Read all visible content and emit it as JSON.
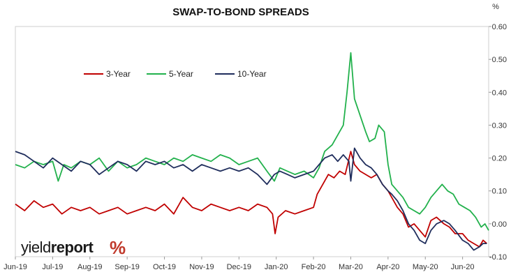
{
  "colors": {
    "three_year": "#c00000",
    "five_year": "#22b14c",
    "ten_year": "#1f2d5c",
    "axis": "#999999",
    "logo_accent": "#c0392b"
  },
  "logo": {
    "light": "yield",
    "bold": "report",
    "symbol": "%"
  },
  "chart_data": {
    "type": "line",
    "title": "SWAP-TO-BOND SPREADS",
    "ylabel": "%",
    "ylim": [
      -0.1,
      0.6
    ],
    "yticks": [
      "0.60",
      "0.50",
      "0.40",
      "0.30",
      "0.20",
      "0.10",
      "0.00",
      "-0.10"
    ],
    "ytick_values": [
      0.6,
      0.5,
      0.4,
      0.3,
      0.2,
      0.1,
      0.0,
      -0.1
    ],
    "xlim": [
      0,
      12.7
    ],
    "xticks": [
      "Jun-19",
      "Jul-19",
      "Aug-19",
      "Sep-19",
      "Oct-19",
      "Nov-19",
      "Dec-19",
      "Jan-20",
      "Feb-20",
      "Mar-20",
      "Apr-20",
      "May-20",
      "Jun-20"
    ],
    "xtick_values": [
      0,
      1,
      2,
      3,
      4,
      5,
      6,
      7,
      8,
      9,
      10,
      11,
      12
    ],
    "x_unit": "months since Jun-2019",
    "grid": false,
    "legend": {
      "position": "top-left",
      "entries": [
        "3-Year",
        "5-Year",
        "10-Year"
      ]
    },
    "series": [
      {
        "name": "3-Year",
        "color": "#c00000",
        "points": [
          [
            0.0,
            0.06
          ],
          [
            0.25,
            0.04
          ],
          [
            0.5,
            0.07
          ],
          [
            0.75,
            0.05
          ],
          [
            1.0,
            0.06
          ],
          [
            1.25,
            0.03
          ],
          [
            1.5,
            0.05
          ],
          [
            1.75,
            0.04
          ],
          [
            2.0,
            0.05
          ],
          [
            2.25,
            0.03
          ],
          [
            2.5,
            0.04
          ],
          [
            2.75,
            0.05
          ],
          [
            3.0,
            0.03
          ],
          [
            3.25,
            0.04
          ],
          [
            3.5,
            0.05
          ],
          [
            3.75,
            0.04
          ],
          [
            4.0,
            0.06
          ],
          [
            4.25,
            0.03
          ],
          [
            4.5,
            0.08
          ],
          [
            4.75,
            0.05
          ],
          [
            5.0,
            0.04
          ],
          [
            5.25,
            0.06
          ],
          [
            5.5,
            0.05
          ],
          [
            5.75,
            0.04
          ],
          [
            6.0,
            0.05
          ],
          [
            6.25,
            0.04
          ],
          [
            6.5,
            0.06
          ],
          [
            6.75,
            0.05
          ],
          [
            6.9,
            0.03
          ],
          [
            6.97,
            -0.03
          ],
          [
            7.05,
            0.02
          ],
          [
            7.25,
            0.04
          ],
          [
            7.5,
            0.03
          ],
          [
            7.75,
            0.04
          ],
          [
            8.0,
            0.05
          ],
          [
            8.1,
            0.09
          ],
          [
            8.25,
            0.12
          ],
          [
            8.4,
            0.15
          ],
          [
            8.55,
            0.14
          ],
          [
            8.7,
            0.16
          ],
          [
            8.85,
            0.15
          ],
          [
            9.0,
            0.22
          ],
          [
            9.1,
            0.18
          ],
          [
            9.25,
            0.16
          ],
          [
            9.4,
            0.15
          ],
          [
            9.55,
            0.14
          ],
          [
            9.7,
            0.15
          ],
          [
            9.85,
            0.12
          ],
          [
            10.0,
            0.1
          ],
          [
            10.1,
            0.08
          ],
          [
            10.25,
            0.05
          ],
          [
            10.4,
            0.03
          ],
          [
            10.55,
            -0.01
          ],
          [
            10.7,
            0.0
          ],
          [
            10.85,
            -0.02
          ],
          [
            11.0,
            -0.04
          ],
          [
            11.15,
            0.01
          ],
          [
            11.3,
            0.02
          ],
          [
            11.5,
            0.0
          ],
          [
            11.65,
            -0.01
          ],
          [
            11.8,
            -0.03
          ],
          [
            12.0,
            -0.03
          ],
          [
            12.15,
            -0.05
          ],
          [
            12.3,
            -0.06
          ],
          [
            12.45,
            -0.07
          ],
          [
            12.55,
            -0.05
          ],
          [
            12.65,
            -0.06
          ]
        ]
      },
      {
        "name": "5-Year",
        "color": "#22b14c",
        "points": [
          [
            0.0,
            0.18
          ],
          [
            0.25,
            0.17
          ],
          [
            0.5,
            0.19
          ],
          [
            0.75,
            0.18
          ],
          [
            1.0,
            0.19
          ],
          [
            1.15,
            0.13
          ],
          [
            1.3,
            0.18
          ],
          [
            1.5,
            0.17
          ],
          [
            1.75,
            0.19
          ],
          [
            2.0,
            0.18
          ],
          [
            2.25,
            0.2
          ],
          [
            2.5,
            0.16
          ],
          [
            2.75,
            0.19
          ],
          [
            3.0,
            0.17
          ],
          [
            3.25,
            0.18
          ],
          [
            3.5,
            0.2
          ],
          [
            3.75,
            0.19
          ],
          [
            4.0,
            0.18
          ],
          [
            4.25,
            0.2
          ],
          [
            4.5,
            0.19
          ],
          [
            4.75,
            0.21
          ],
          [
            5.0,
            0.2
          ],
          [
            5.25,
            0.19
          ],
          [
            5.5,
            0.21
          ],
          [
            5.75,
            0.2
          ],
          [
            6.0,
            0.18
          ],
          [
            6.25,
            0.19
          ],
          [
            6.5,
            0.2
          ],
          [
            6.75,
            0.16
          ],
          [
            6.95,
            0.13
          ],
          [
            7.1,
            0.17
          ],
          [
            7.3,
            0.16
          ],
          [
            7.5,
            0.15
          ],
          [
            7.75,
            0.16
          ],
          [
            8.0,
            0.14
          ],
          [
            8.15,
            0.17
          ],
          [
            8.3,
            0.22
          ],
          [
            8.5,
            0.24
          ],
          [
            8.65,
            0.27
          ],
          [
            8.8,
            0.3
          ],
          [
            8.9,
            0.4
          ],
          [
            9.0,
            0.52
          ],
          [
            9.1,
            0.38
          ],
          [
            9.25,
            0.33
          ],
          [
            9.4,
            0.28
          ],
          [
            9.5,
            0.25
          ],
          [
            9.65,
            0.26
          ],
          [
            9.75,
            0.3
          ],
          [
            9.9,
            0.28
          ],
          [
            10.0,
            0.18
          ],
          [
            10.1,
            0.12
          ],
          [
            10.25,
            0.1
          ],
          [
            10.4,
            0.08
          ],
          [
            10.55,
            0.05
          ],
          [
            10.7,
            0.04
          ],
          [
            10.85,
            0.03
          ],
          [
            11.0,
            0.05
          ],
          [
            11.15,
            0.08
          ],
          [
            11.3,
            0.1
          ],
          [
            11.45,
            0.12
          ],
          [
            11.6,
            0.1
          ],
          [
            11.75,
            0.09
          ],
          [
            11.9,
            0.06
          ],
          [
            12.05,
            0.05
          ],
          [
            12.2,
            0.04
          ],
          [
            12.35,
            0.02
          ],
          [
            12.5,
            -0.01
          ],
          [
            12.6,
            0.0
          ],
          [
            12.7,
            -0.02
          ]
        ]
      },
      {
        "name": "10-Year",
        "color": "#1f2d5c",
        "points": [
          [
            0.0,
            0.22
          ],
          [
            0.25,
            0.21
          ],
          [
            0.5,
            0.19
          ],
          [
            0.75,
            0.17
          ],
          [
            1.0,
            0.2
          ],
          [
            1.25,
            0.18
          ],
          [
            1.5,
            0.16
          ],
          [
            1.75,
            0.19
          ],
          [
            2.0,
            0.18
          ],
          [
            2.25,
            0.15
          ],
          [
            2.5,
            0.17
          ],
          [
            2.75,
            0.19
          ],
          [
            3.0,
            0.18
          ],
          [
            3.25,
            0.16
          ],
          [
            3.5,
            0.19
          ],
          [
            3.75,
            0.18
          ],
          [
            4.0,
            0.19
          ],
          [
            4.25,
            0.17
          ],
          [
            4.5,
            0.18
          ],
          [
            4.75,
            0.16
          ],
          [
            5.0,
            0.18
          ],
          [
            5.25,
            0.17
          ],
          [
            5.5,
            0.16
          ],
          [
            5.75,
            0.17
          ],
          [
            6.0,
            0.16
          ],
          [
            6.25,
            0.17
          ],
          [
            6.5,
            0.15
          ],
          [
            6.75,
            0.12
          ],
          [
            6.95,
            0.15
          ],
          [
            7.1,
            0.16
          ],
          [
            7.3,
            0.15
          ],
          [
            7.5,
            0.14
          ],
          [
            7.75,
            0.15
          ],
          [
            8.0,
            0.16
          ],
          [
            8.15,
            0.18
          ],
          [
            8.3,
            0.2
          ],
          [
            8.5,
            0.21
          ],
          [
            8.65,
            0.19
          ],
          [
            8.8,
            0.21
          ],
          [
            8.95,
            0.19
          ],
          [
            9.0,
            0.13
          ],
          [
            9.1,
            0.23
          ],
          [
            9.25,
            0.2
          ],
          [
            9.4,
            0.18
          ],
          [
            9.55,
            0.17
          ],
          [
            9.7,
            0.15
          ],
          [
            9.85,
            0.12
          ],
          [
            10.0,
            0.1
          ],
          [
            10.1,
            0.09
          ],
          [
            10.25,
            0.07
          ],
          [
            10.4,
            0.04
          ],
          [
            10.55,
            0.0
          ],
          [
            10.7,
            -0.02
          ],
          [
            10.85,
            -0.05
          ],
          [
            11.0,
            -0.06
          ],
          [
            11.15,
            -0.02
          ],
          [
            11.3,
            0.0
          ],
          [
            11.5,
            0.01
          ],
          [
            11.65,
            0.0
          ],
          [
            11.8,
            -0.02
          ],
          [
            12.0,
            -0.05
          ],
          [
            12.15,
            -0.06
          ],
          [
            12.3,
            -0.08
          ],
          [
            12.45,
            -0.07
          ],
          [
            12.55,
            -0.06
          ],
          [
            12.65,
            -0.06
          ]
        ]
      }
    ]
  }
}
